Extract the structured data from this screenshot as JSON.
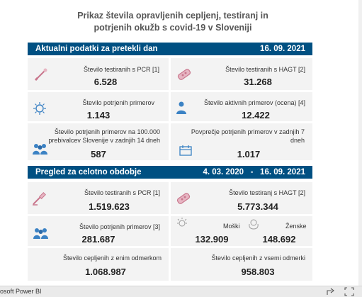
{
  "title_line1": "Prikaz števila opravljenih cepljenj, testiranj in",
  "title_line2": "potrjenih okužb s covid-19 v Sloveniji",
  "section1": {
    "label": "Aktualni podatki za pretekli dan",
    "date": "16. 09. 2021"
  },
  "section2": {
    "label": "Pregled za celotno obdobje",
    "date_from": "4. 03. 2020",
    "date_sep": "-",
    "date_to": "16. 09. 2021"
  },
  "daily": {
    "pcr": {
      "label": "Število testiranih s PCR [1]",
      "value": "6.528"
    },
    "hagt": {
      "label": "Število testiranih s HAGT [2]",
      "value": "31.268"
    },
    "confirmed": {
      "label": "Število potrjenih primerov",
      "value": "1.143"
    },
    "active": {
      "label": "Število aktivnih primerov (ocena) [4]",
      "value": "12.422"
    },
    "per100k": {
      "label_line1": "Število potrjenih primerov na 100.000",
      "label_line2": "prebivalcev Slovenije v zadnjih 14 dneh",
      "value": "587"
    },
    "avg7": {
      "label_line1": "Povprečje potrjenih primerov v zadnjih 7",
      "label_line2": "dneh",
      "value": "1.017"
    }
  },
  "total": {
    "pcr": {
      "label": "Število testiranih s PCR [1]",
      "value": "1.519.623"
    },
    "hagt": {
      "label": "Število testiranj s HAGT [2]",
      "value": "5.773.344"
    },
    "confirmed": {
      "label": "Število potrjenih primerov [3]",
      "value": "281.687"
    },
    "male": {
      "label": "Moški",
      "value": "132.909"
    },
    "female": {
      "label": "Ženske",
      "value": "148.692"
    },
    "vacc_one": {
      "label": "Število cepljenih z enim odmerkom",
      "value": "1.068.987"
    },
    "vacc_all": {
      "label": "Število cepljenih z vsemi odmerki",
      "value": "958.803"
    }
  },
  "footer": {
    "brand": "osoft Power BI"
  },
  "colors": {
    "header_band": "#005082",
    "card_bg": "#f3f3f3",
    "accent_pink": "#c9788e",
    "accent_blue": "#3b82c4"
  }
}
